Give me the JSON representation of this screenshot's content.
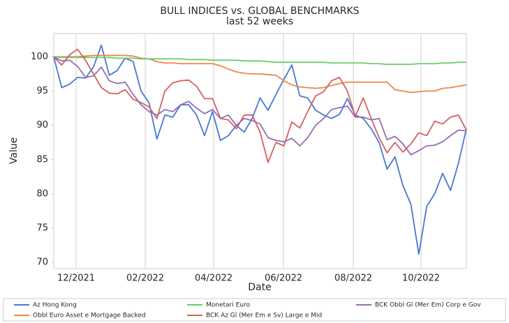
{
  "chart_data": {
    "type": "line",
    "title": "BULL INDICES vs. GLOBAL BENCHMARKS",
    "subtitle": "last 52 weeks",
    "x_label": "Date",
    "y_label": "Value",
    "x": [
      0,
      1,
      2,
      3,
      4,
      5,
      6,
      7,
      8,
      9,
      10,
      11,
      12,
      13,
      14,
      15,
      16,
      17,
      18,
      19,
      20,
      21,
      22,
      23,
      24,
      25,
      26,
      27,
      28,
      29,
      30,
      31,
      32,
      33,
      34,
      35,
      36,
      37,
      38,
      39,
      40,
      41,
      42,
      43,
      44,
      45,
      46,
      47,
      48,
      49,
      50,
      51,
      52
    ],
    "xlim": [
      0,
      52
    ],
    "xticks": [
      {
        "value": 2.82,
        "label": "12/2021"
      },
      {
        "value": 11.53,
        "label": "02/2022"
      },
      {
        "value": 20.15,
        "label": "04/2022"
      },
      {
        "value": 28.95,
        "label": "06/2022"
      },
      {
        "value": 37.75,
        "label": "08/2022"
      },
      {
        "value": 46.28,
        "label": "10/2022"
      }
    ],
    "ylim": [
      69.1,
      103.4
    ],
    "yticks": [
      70,
      75,
      80,
      85,
      90,
      95,
      100
    ],
    "grid": "x",
    "legend": "bottom",
    "series": [
      {
        "name": "Az Hong Kong",
        "color": "#4878d0",
        "values": [
          100,
          95.5,
          96,
          97,
          96.9,
          98.5,
          101.7,
          97.3,
          98,
          99.8,
          99.3,
          95,
          93.3,
          88,
          91.5,
          91.2,
          93,
          93,
          91.5,
          88.5,
          92,
          87.8,
          88.5,
          90,
          89,
          91,
          94,
          92.2,
          94.5,
          96.7,
          98.8,
          94.3,
          94,
          92.2,
          91.5,
          91,
          91.6,
          93.9,
          91.5,
          91,
          89.5,
          87.5,
          83.6,
          85.4,
          81.2,
          78.5,
          71.2,
          78.2,
          80,
          83,
          80.5,
          84.5,
          89.5
        ]
      },
      {
        "name": "Obbl Euro Asset e Mortgage Backed",
        "color": "#ee854a",
        "values": [
          100,
          100,
          100,
          100,
          100.1,
          100.2,
          100.2,
          100.2,
          100.2,
          100.2,
          100.1,
          99.8,
          99.7,
          99.3,
          99.1,
          99.1,
          99,
          99,
          99,
          99,
          99,
          98.7,
          98.2,
          97.8,
          97.6,
          97.5,
          97.5,
          97.4,
          97.3,
          96.5,
          95.9,
          95.6,
          95.5,
          95.4,
          95.5,
          95.8,
          96.1,
          96.3,
          96.3,
          96.3,
          96.3,
          96.3,
          96.3,
          95.2,
          95,
          94.8,
          94.9,
          95,
          95,
          95.4,
          95.5,
          95.7,
          95.9
        ]
      },
      {
        "name": "Monetari Euro",
        "color": "#6acc64",
        "values": [
          100,
          99.9,
          99.9,
          99.9,
          99.9,
          99.9,
          99.9,
          99.9,
          99.8,
          99.8,
          99.8,
          99.7,
          99.7,
          99.7,
          99.7,
          99.7,
          99.7,
          99.6,
          99.6,
          99.6,
          99.5,
          99.5,
          99.5,
          99.5,
          99.4,
          99.4,
          99.4,
          99.3,
          99.2,
          99.2,
          99.2,
          99.2,
          99.2,
          99.2,
          99.2,
          99.1,
          99.1,
          99.1,
          99.1,
          99.1,
          99,
          99,
          98.9,
          98.9,
          98.9,
          98.9,
          99,
          99,
          99,
          99.1,
          99.1,
          99.2,
          99.2
        ]
      },
      {
        "name": "BCK Az Gl (Mer Em e Sv) Large e Mid",
        "color": "#d65f5f",
        "values": [
          100,
          98.8,
          100.3,
          101.1,
          99.5,
          97.5,
          95.5,
          94.7,
          94.6,
          95.2,
          93.8,
          93.3,
          92.7,
          91,
          95,
          96.2,
          96.5,
          96.6,
          95.7,
          93.9,
          93.9,
          91,
          90.8,
          89.5,
          91.5,
          91.5,
          89,
          84.6,
          87.5,
          87,
          90.5,
          89.6,
          92,
          94.3,
          94.9,
          96.5,
          97,
          95,
          91.3,
          94,
          91,
          88.2,
          86,
          87.5,
          86.1,
          87.3,
          88.9,
          88.5,
          90.6,
          90.2,
          91.2,
          91.5,
          89.3
        ]
      },
      {
        "name": "BCK Obbl Gl (Mer Em) Corp e Gov",
        "color": "#956cb4",
        "values": [
          100,
          99.4,
          99.5,
          98.6,
          97,
          97.2,
          98.5,
          96.5,
          96.1,
          96.3,
          94.5,
          93,
          92,
          91.5,
          92.3,
          92,
          93,
          93.5,
          92.5,
          91.7,
          92.3,
          91,
          91.5,
          90,
          91,
          90.7,
          90.2,
          88.2,
          87.8,
          87.6,
          88.1,
          87,
          88.2,
          90,
          91,
          92.3,
          92.6,
          92.8,
          91.2,
          91.2,
          90.8,
          91,
          87.9,
          88.4,
          87.3,
          85.7,
          86.3,
          87,
          87.1,
          87.6,
          88.5,
          89.3,
          89.2
        ]
      }
    ]
  }
}
